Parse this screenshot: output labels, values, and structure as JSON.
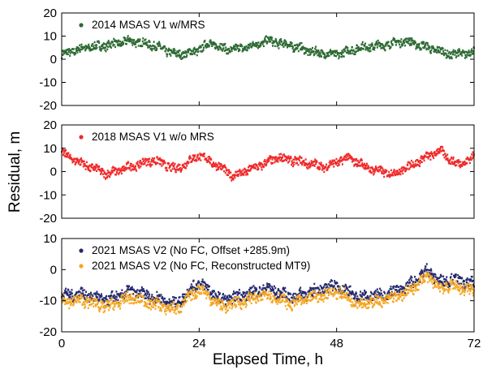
{
  "chart_data": {
    "type": "scatter",
    "xlabel": "Elapsed Time, h",
    "ylabel": "Residual, m",
    "x_ticks": [
      "0",
      "24",
      "48",
      "72"
    ],
    "y_ticks": [
      "20",
      "10",
      "0",
      "-10",
      "-20"
    ],
    "panels": [
      {
        "xlim": [
          0,
          72
        ],
        "ylim": [
          -20,
          20
        ],
        "series": [
          {
            "name": "2014 MSAS V1 w/MRS",
            "color": "#2e6b34",
            "x": [
              0,
              4,
              8,
              12,
              16,
              20,
              23,
              26,
              29,
              32,
              36,
              40,
              44,
              48,
              52,
              56,
              60,
              64,
              68,
              72
            ],
            "y": [
              2,
              5,
              6,
              8,
              6,
              2,
              3,
              7,
              4,
              5,
              8,
              6,
              3,
              2,
              5,
              6,
              8,
              5,
              2,
              3
            ]
          }
        ]
      },
      {
        "xlim": [
          0,
          72
        ],
        "ylim": [
          -20,
          20
        ],
        "series": [
          {
            "name": "2018 MSAS V1 w/o MRS",
            "color": "#f02a2a",
            "x": [
              0,
              4,
              8,
              12,
              16,
              20,
              24,
              27,
              30,
              34,
              38,
              42,
              46,
              50,
              54,
              58,
              62,
              66,
              69,
              72
            ],
            "y": [
              8,
              3,
              -1,
              2,
              5,
              1,
              7,
              3,
              -2,
              2,
              6,
              4,
              2,
              6,
              1,
              -1,
              4,
              9,
              3,
              6
            ]
          }
        ]
      },
      {
        "xlim": [
          0,
          72
        ],
        "ylim": [
          -20,
          10
        ],
        "series": [
          {
            "name": "2021 MSAS V2 (No FC, Offset +285.9m)",
            "color": "#252a6e",
            "x": [
              0,
              4,
              8,
              12,
              16,
              20,
              24,
              28,
              32,
              36,
              40,
              44,
              48,
              52,
              56,
              60,
              64,
              66,
              68,
              72
            ],
            "y": [
              -8,
              -8,
              -10,
              -7,
              -9,
              -11,
              -4,
              -10,
              -8,
              -6,
              -9,
              -7,
              -5,
              -9,
              -8,
              -6,
              0,
              -4,
              -3,
              -5
            ]
          },
          {
            "name": "2021 MSAS V2 (No FC, Reconstructed MT9)",
            "color": "#f5a623",
            "x": [
              0,
              4,
              8,
              12,
              16,
              20,
              24,
              28,
              32,
              36,
              40,
              44,
              48,
              52,
              56,
              60,
              64,
              66,
              68,
              72
            ],
            "y": [
              -10,
              -10,
              -12,
              -9,
              -11,
              -13,
              -6,
              -12,
              -10,
              -8,
              -11,
              -9,
              -7,
              -11,
              -10,
              -8,
              -2,
              -6,
              -5,
              -7
            ]
          }
        ]
      }
    ]
  }
}
